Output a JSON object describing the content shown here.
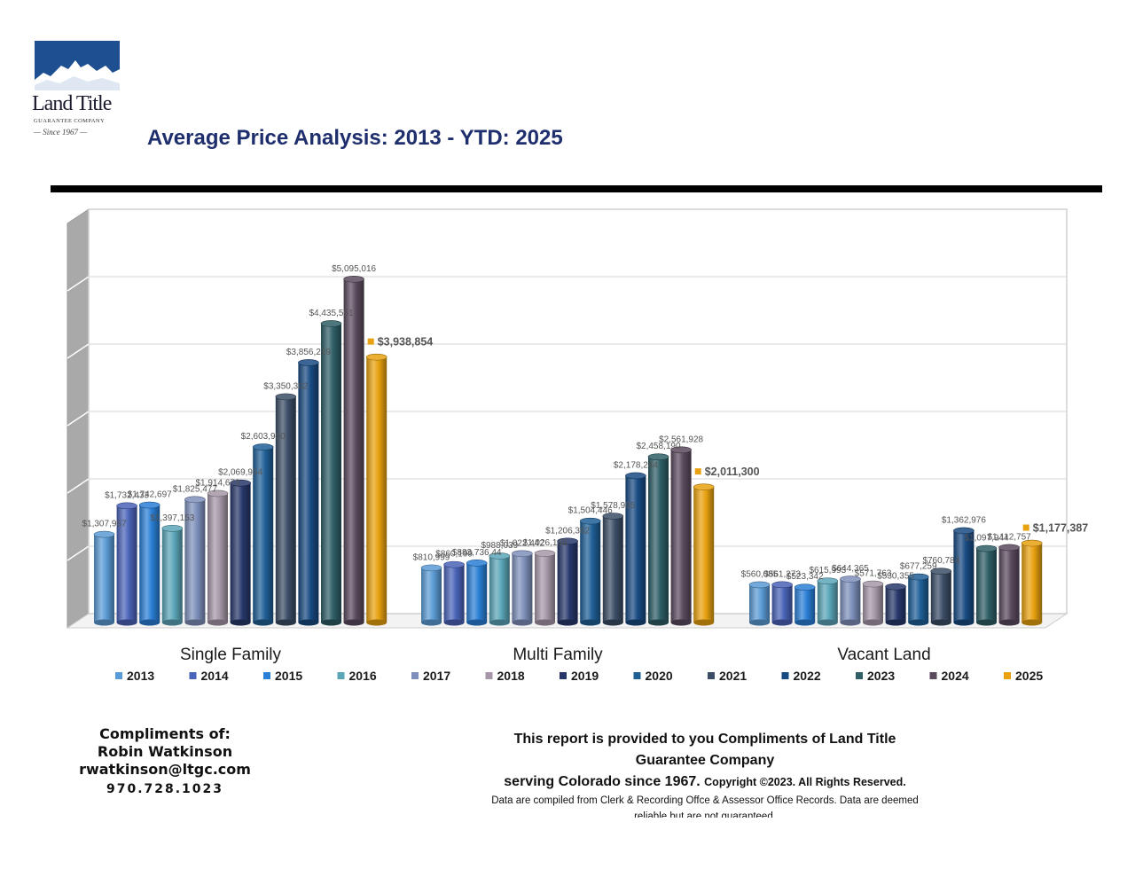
{
  "logo": {
    "name": "Land Title",
    "subtitle": "GUARANTEE COMPANY",
    "since": "Since 1967",
    "colors": {
      "sky": "#1d4f91",
      "snow": "#ffffff"
    }
  },
  "header": {
    "title": "Average Price Analysis: 2013 - YTD: 2025"
  },
  "chart_data": {
    "type": "bar",
    "categories": [
      "Single Family",
      "Multi Family",
      "Vacant Land"
    ],
    "ylim": [
      0,
      6000000
    ],
    "grid": true,
    "legend_position": "bottom",
    "series": [
      {
        "name": "2013",
        "color": "#5b9bd5",
        "values": [
          1307967,
          810999,
          560085
        ],
        "labels": [
          "$1,307,967",
          "$810,999",
          "$560,085"
        ]
      },
      {
        "name": "2014",
        "color": "#4a63b8",
        "values": [
          1732433,
          860199,
          561273
        ],
        "labels": [
          "$1,732,433",
          "$860,199",
          "$561,273"
        ]
      },
      {
        "name": "2015",
        "color": "#2a7fd6",
        "values": [
          1742697,
          883736.44,
          523342
        ],
        "labels": [
          "$1,742,697",
          "$883,736.44",
          "$523,342"
        ]
      },
      {
        "name": "2016",
        "color": "#5aa5b8",
        "values": [
          1397153,
          988039,
          615993
        ],
        "labels": [
          "$1,397,153",
          "$988,039",
          "$615,993"
        ]
      },
      {
        "name": "2017",
        "color": "#7d8fba",
        "values": [
          1825477,
          1022442,
          644365
        ],
        "labels": [
          "$1,825,477",
          "$1,022,442",
          "$644,365"
        ]
      },
      {
        "name": "2018",
        "color": "#a597a7",
        "values": [
          1914673,
          1026148,
          571763
        ],
        "labels": [
          "$1,914,673",
          "$1,026,148",
          "$571,763"
        ]
      },
      {
        "name": "2019",
        "color": "#27376b",
        "values": [
          2069954,
          1206362,
          530355
        ],
        "labels": [
          "$2,069,954",
          "$1,206,362",
          "$530,355"
        ]
      },
      {
        "name": "2020",
        "color": "#1f5f96",
        "values": [
          2603950,
          1504446,
          677259
        ],
        "labels": [
          "$2,603,950",
          "$1,504,446",
          "$677,259"
        ]
      },
      {
        "name": "2021",
        "color": "#3b4d66",
        "values": [
          3350302,
          1578995,
          760784
        ],
        "labels": [
          "$3,350,302",
          "$1,578,995",
          "$760,784"
        ]
      },
      {
        "name": "2022",
        "color": "#184a82",
        "values": [
          3856219,
          2178244,
          1362976
        ],
        "labels": [
          "$3,856,219",
          "$2,178,244",
          "$1,362,976"
        ]
      },
      {
        "name": "2023",
        "color": "#2e5e66",
        "values": [
          4435561,
          2458190,
          1097944
        ],
        "labels": [
          "$4,435,561",
          "$2,458,190",
          "$1,097,944"
        ]
      },
      {
        "name": "2024",
        "color": "#5a4a5d",
        "values": [
          5095016,
          2561928,
          1112757
        ],
        "labels": [
          "$5,095,016",
          "$2,561,928",
          "$1,112,757"
        ]
      },
      {
        "name": "2025",
        "color": "#e8a10f",
        "values": [
          3938854,
          2011300,
          1177387
        ],
        "labels": [
          "$3,938,854",
          "$2,011,300",
          "$1,177,387"
        ]
      }
    ]
  },
  "footer": {
    "left": {
      "compliments": "Compliments of:",
      "name": "Robin Watkinson",
      "email": "rwatkinson@ltgc.com",
      "phone": "970.728.1023"
    },
    "right": {
      "main": "This report is provided to you Compliments of Land Title Guarantee Company",
      "serving": "serving Colorado since 1967.",
      "copyright": "Copyright ©2023.  All Rights Reserved.",
      "note": "Data are compiled from Clerk & Recording Offce & Assessor Office Records.  Data are deemed reliable but are not guaranteed."
    }
  }
}
